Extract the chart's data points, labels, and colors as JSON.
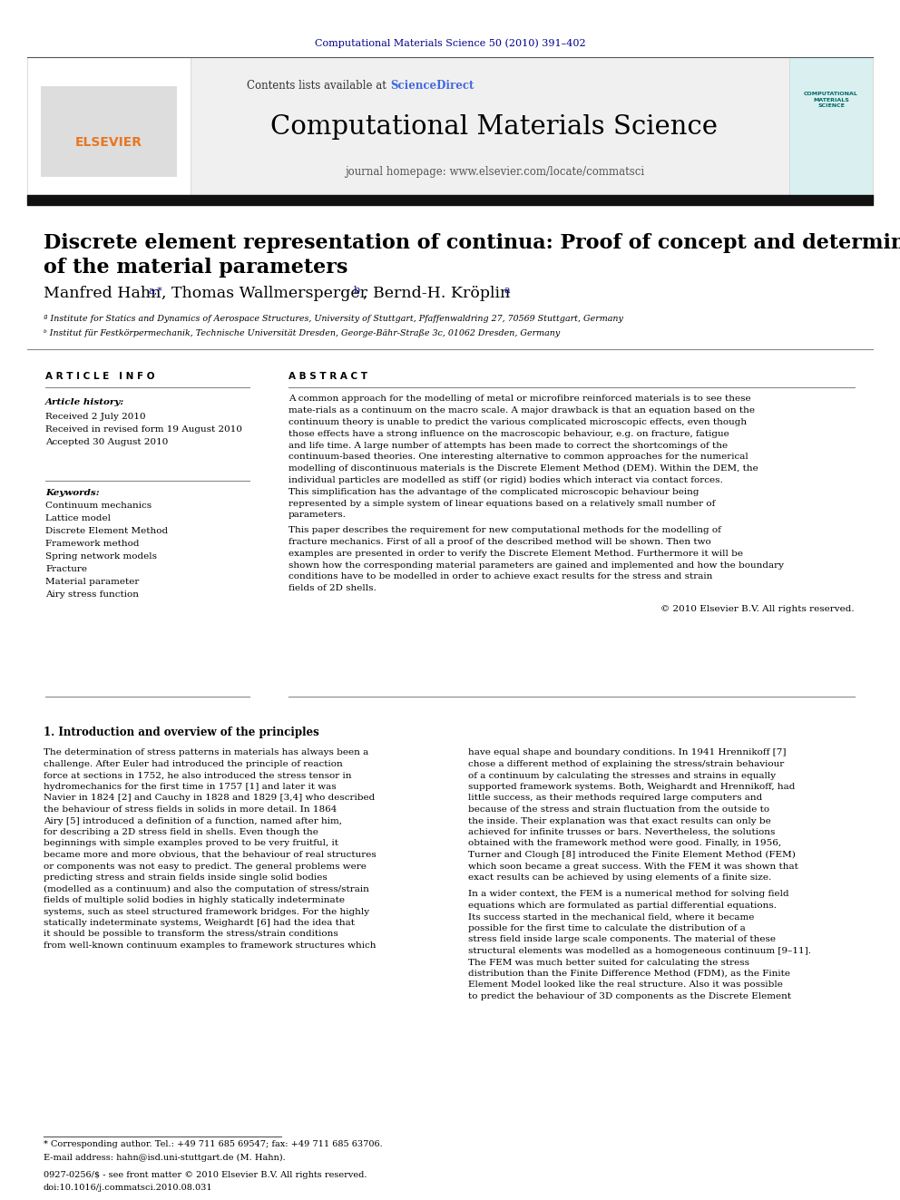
{
  "journal_ref": "Computational Materials Science 50 (2010) 391–402",
  "journal_ref_color": "#00008B",
  "sciencedirect_color": "#4169E1",
  "journal_name": "Computational Materials Science",
  "journal_homepage": "journal homepage: www.elsevier.com/locate/commatsci",
  "paper_title_line1": "Discrete element representation of continua: Proof of concept and determination",
  "paper_title_line2": "of the material parameters",
  "affil_a": "ª Institute for Statics and Dynamics of Aerospace Structures, University of Stuttgart, Pfaffenwaldring 27, 70569 Stuttgart, Germany",
  "affil_b": "ᵇ Institut für Festkörpermechanik, Technische Universität Dresden, George-Bähr-Straße 3c, 01062 Dresden, Germany",
  "article_info_header": "A R T I C L E   I N F O",
  "abstract_header": "A B S T R A C T",
  "article_history_label": "Article history:",
  "received1": "Received 2 July 2010",
  "received2": "Received in revised form 19 August 2010",
  "accepted": "Accepted 30 August 2010",
  "keywords_label": "Keywords:",
  "keywords": [
    "Continuum mechanics",
    "Lattice model",
    "Discrete Element Method",
    "Framework method",
    "Spring network models",
    "Fracture",
    "Material parameter",
    "Airy stress function"
  ],
  "abstract_text1": "A common approach for the modelling of metal or microfibre reinforced materials is to see these mate-rials as a continuum on the macro scale. A major drawback is that an equation based on the continuum theory is unable to predict the various complicated microscopic effects, even though those effects have a strong influence on the macroscopic behaviour, e.g. on fracture, fatigue and life time. A large number of attempts has been made to correct the shortcomings of the continuum-based theories. One interesting alternative to common approaches for the numerical modelling of discontinuous materials is the Discrete Element Method (DEM). Within the DEM, the individual particles are modelled as stiff (or rigid) bodies which interact via contact forces. This simplification has the advantage of the complicated microscopic behaviour being represented by a simple system of linear equations based on a relatively small number of parameters.",
  "abstract_text2": "This paper describes the requirement for new computational methods for the modelling of fracture mechanics. First of all a proof of the described method will be shown. Then two examples are presented in order to verify the Discrete Element Method. Furthermore it will be shown how the corresponding material parameters are gained and implemented and how the boundary conditions have to be modelled in order to achieve exact results for the stress and strain fields of 2D shells.",
  "abstract_copyright": "© 2010 Elsevier B.V. All rights reserved.",
  "section1_title": "1. Introduction and overview of the principles",
  "section1_col1": "The determination of stress patterns in materials has always been a challenge. After Euler had introduced the principle of reaction force at sections in 1752, he also introduced the stress tensor in hydromechanics for the first time in 1757 [1] and later it was Navier in 1824 [2] and Cauchy in 1828 and 1829 [3,4] who described the behaviour of stress fields in solids in more detail. In 1864 Airy [5] introduced a definition of a function, named after him, for describing a 2D stress field in shells. Even though the beginnings with simple examples proved to be very fruitful, it became more and more obvious, that the behaviour of real structures or components was not easy to predict. The general problems were predicting stress and strain fields inside single solid bodies (modelled as a continuum) and also the computation of stress/strain fields of multiple solid bodies in highly statically indeterminate systems, such as steel structured framework bridges. For the highly statically indeterminate systems, Weighardt [6] had the idea that it should be possible to transform the stress/strain conditions from well-known continuum examples to framework structures which",
  "section1_col2_p1": "have equal shape and boundary conditions. In 1941 Hrennikoff [7] chose a different method of explaining the stress/strain behaviour of a continuum by calculating the stresses and strains in equally supported framework systems. Both, Weighardt and Hrennikoff, had little success, as their methods required large computers and because of the stress and strain fluctuation from the outside to the inside. Their explanation was that exact results can only be achieved for infinite trusses or bars. Nevertheless, the solutions obtained with the framework method were good. Finally, in 1956, Turner and Clough [8] introduced the Finite Element Method (FEM) which soon became a great success. With the FEM it was shown that exact results can be achieved by using elements of a finite size.",
  "section1_col2_p2": "In a wider context, the FEM is a numerical method for solving field equations which are formulated as partial differential equations. Its success started in the mechanical field, where it became possible for the first time to calculate the distribution of a stress field inside large scale components. The material of these structural elements was modelled as a homogeneous continuum [9–11]. The FEM was much better suited for calculating the stress distribution than the Finite Difference Method (FDM), as the Finite Element Model looked like the real structure. Also it was possible to predict the behaviour of 3D components as the Discrete Element",
  "footnote_star": "* Corresponding author. Tel.: +49 711 685 69547; fax: +49 711 685 63706.",
  "footnote_email": "E-mail address: hahn@isd.uni-stuttgart.de (M. Hahn).",
  "footer_issn": "0927-0256/$ - see front matter © 2010 Elsevier B.V. All rights reserved.",
  "footer_doi": "doi:10.1016/j.commatsci.2010.08.031",
  "bg_color": "#ffffff",
  "black": "#000000",
  "dark_blue": "#00008B",
  "medium_blue": "#4169E1",
  "elsevier_orange": "#E87722"
}
